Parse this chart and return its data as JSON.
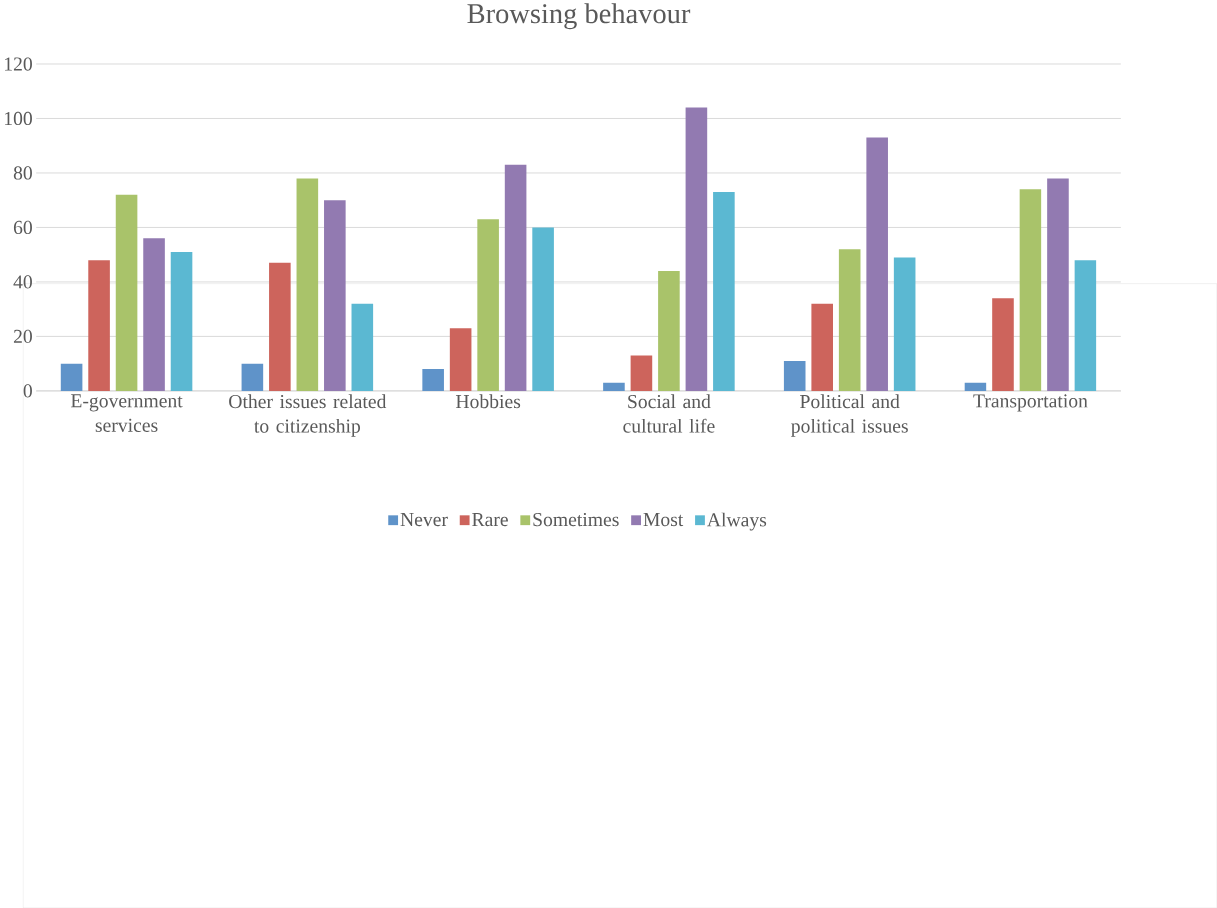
{
  "chart_data": {
    "type": "bar",
    "title": "Browsing behavour",
    "categories": [
      "E-government services",
      "Other issues related to citizenship",
      "Hobbies",
      "Social and cultural life",
      "Political and political issues",
      "Transportation"
    ],
    "series": [
      {
        "name": "Never",
        "color": "#5f93c9",
        "values": [
          10,
          10,
          8,
          3,
          11,
          3
        ]
      },
      {
        "name": "Rare",
        "color": "#cd645c",
        "values": [
          48,
          47,
          23,
          13,
          32,
          34
        ]
      },
      {
        "name": "Sometimes",
        "color": "#a9c36a",
        "values": [
          72,
          78,
          63,
          44,
          52,
          74
        ]
      },
      {
        "name": "Most",
        "color": "#927ab1",
        "values": [
          56,
          70,
          83,
          104,
          93,
          78
        ]
      },
      {
        "name": "Always",
        "color": "#5bb8d2",
        "values": [
          51,
          32,
          60,
          73,
          49,
          48
        ]
      }
    ],
    "ylim": [
      0,
      120
    ],
    "yticks": [
      0,
      20,
      40,
      60,
      80,
      100,
      120
    ],
    "grid": "y",
    "legend": "bottom"
  }
}
